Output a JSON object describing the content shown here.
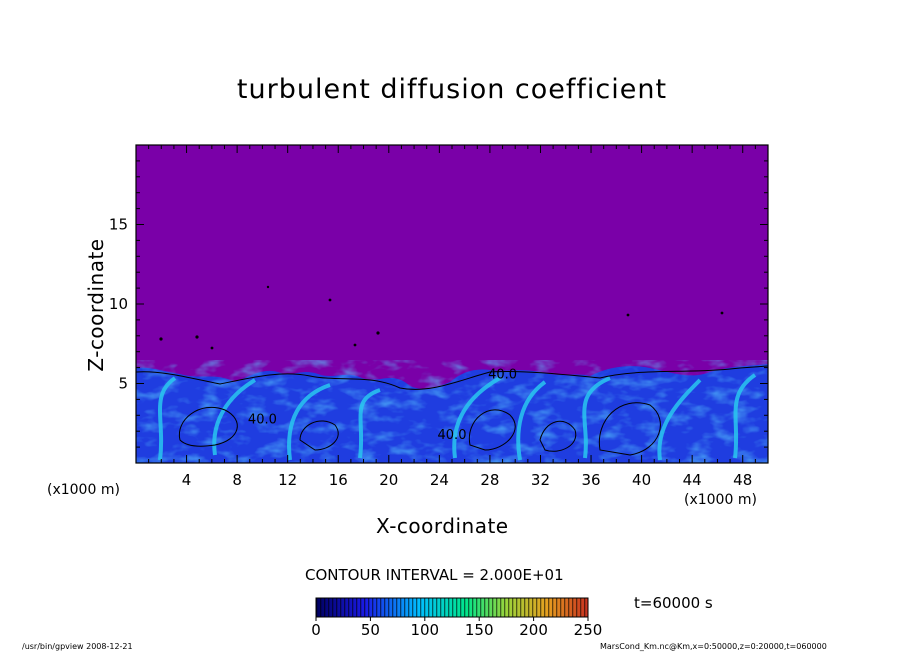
{
  "chart_data": {
    "type": "heatmap",
    "title": "turbulent diffusion coefficient",
    "xlabel": "X-coordinate",
    "ylabel": "Z-coordinate",
    "x_unit_left": "(x1000 m)",
    "x_unit_right": "(x1000 m)",
    "xlim": [
      0,
      50
    ],
    "ylim": [
      0,
      20
    ],
    "x_ticks": [
      4,
      8,
      12,
      16,
      20,
      24,
      28,
      32,
      36,
      40,
      44,
      48
    ],
    "y_ticks": [
      5,
      10,
      15
    ],
    "contour_interval": "CONTOUR INTERVAL = 2.000E+01",
    "contour_labels": [
      {
        "text": "40.0",
        "x": 10,
        "z": 2.5
      },
      {
        "text": "40.0",
        "x": 25,
        "z": 1.5
      },
      {
        "text": "40.0",
        "x": 29,
        "z": 5.3
      }
    ],
    "mixed_layer_top_z": 5.8,
    "colorbar": {
      "min": 0,
      "max": 250,
      "ticks": [
        0,
        50,
        100,
        150,
        200,
        250
      ],
      "colors": [
        "#000080",
        "#1a1ae6",
        "#00bfff",
        "#00e68c",
        "#7fd43a",
        "#e6a020",
        "#c83020"
      ]
    },
    "background_color": "#7a00a8",
    "time_label": "t=60000 s",
    "footer_left": "/usr/bin/gpview  2008-12-21",
    "footer_right": "MarsCond_Km.nc@Km,x=0:50000,z=0:20000,t=060000"
  }
}
